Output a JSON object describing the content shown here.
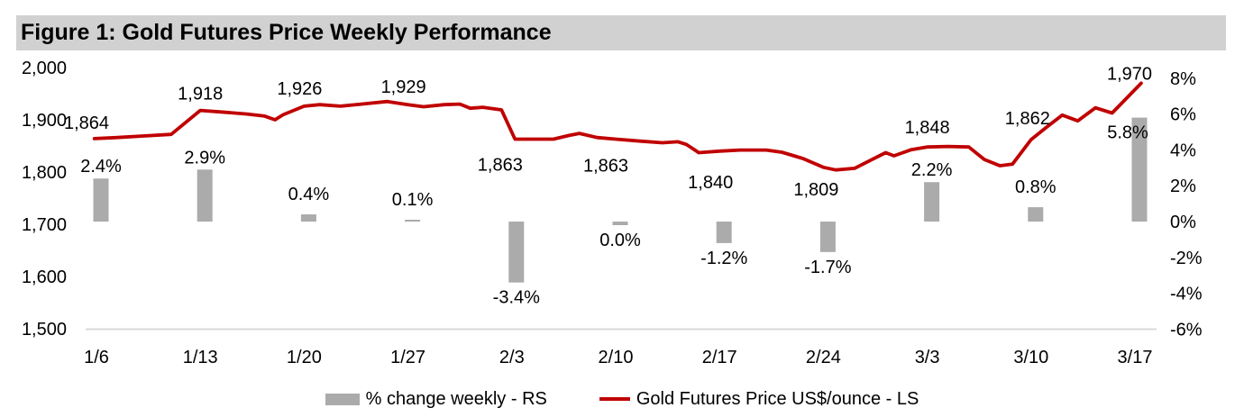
{
  "figure": {
    "title": "Figure 1: Gold Futures Price Weekly Performance"
  },
  "legend": {
    "bar_label": "% change weekly - RS",
    "line_label": "Gold Futures Price US$/ounce - LS"
  },
  "colors": {
    "line_red": "#c00000",
    "bar_gray": "#ababab",
    "title_band_bg": "#d1d1d1",
    "gridline_gray": "#d9d9d9",
    "text_black": "#000000"
  },
  "chart_data": {
    "type": "combo_bar_line",
    "title": "Figure 1: Gold Futures Price Weekly Performance",
    "categories": [
      "1/6",
      "1/13",
      "1/20",
      "1/27",
      "2/3",
      "2/10",
      "2/17",
      "2/24",
      "3/3",
      "3/10",
      "3/17"
    ],
    "series": [
      {
        "name": "% change weekly - RS",
        "type": "bar",
        "axis": "right",
        "unit": "%",
        "values": [
          2.4,
          2.9,
          0.4,
          0.1,
          -3.4,
          0.0,
          -1.2,
          -1.7,
          2.2,
          0.8,
          5.8
        ],
        "labels": [
          "2.4%",
          "2.9%",
          "0.4%",
          "0.1%",
          "-3.4%",
          "0.0%",
          "-1.2%",
          "-1.7%",
          "2.2%",
          "0.8%",
          "5.8%"
        ]
      },
      {
        "name": "Gold Futures Price US$/ounce - LS",
        "type": "line",
        "axis": "left",
        "unit": "US$/ounce",
        "values": [
          1864,
          1918,
          1926,
          1929,
          1863,
          1863,
          1840,
          1809,
          1848,
          1862,
          1970
        ],
        "labels": [
          "1,864",
          "1,918",
          "1,926",
          "1,929",
          "1,863",
          "1,863",
          "1,840",
          "1,809",
          "1,848",
          "1,862",
          "1,970"
        ]
      }
    ],
    "left_axis": {
      "ticks": [
        "2,000",
        "1,900",
        "1,800",
        "1,700",
        "1,600",
        "1,500"
      ],
      "tick_values": [
        2000,
        1900,
        1800,
        1700,
        1600,
        1500
      ],
      "range": [
        1500,
        2000
      ]
    },
    "right_axis": {
      "ticks": [
        "8%",
        "6%",
        "4%",
        "2%",
        "0%",
        "-2%",
        "-4%",
        "-6%"
      ],
      "tick_values": [
        8,
        6,
        4,
        2,
        0,
        -2,
        -4,
        -6
      ],
      "range": [
        -6,
        8
      ]
    },
    "grid": "bottom-baseline-only",
    "legend_position": "bottom-center",
    "line_path_weekly_detail": [
      [
        -0.02,
        1864
      ],
      [
        0.2,
        1866
      ],
      [
        0.45,
        1869
      ],
      [
        0.72,
        1872
      ],
      [
        1.0,
        1918
      ],
      [
        1.2,
        1915
      ],
      [
        1.45,
        1911
      ],
      [
        1.62,
        1907
      ],
      [
        1.72,
        1900
      ],
      [
        1.8,
        1910
      ],
      [
        2.0,
        1926
      ],
      [
        2.15,
        1929
      ],
      [
        2.35,
        1926
      ],
      [
        2.55,
        1930
      ],
      [
        2.8,
        1935
      ],
      [
        3.0,
        1929
      ],
      [
        3.15,
        1925
      ],
      [
        3.35,
        1929
      ],
      [
        3.5,
        1930
      ],
      [
        3.6,
        1922
      ],
      [
        3.72,
        1924
      ],
      [
        3.9,
        1919
      ],
      [
        4.03,
        1863
      ],
      [
        4.4,
        1863
      ],
      [
        4.55,
        1870
      ],
      [
        4.65,
        1874
      ],
      [
        4.82,
        1866
      ],
      [
        5.0,
        1863
      ],
      [
        5.25,
        1859
      ],
      [
        5.45,
        1856
      ],
      [
        5.6,
        1858
      ],
      [
        5.68,
        1853
      ],
      [
        5.8,
        1837
      ],
      [
        6.0,
        1840
      ],
      [
        6.2,
        1842
      ],
      [
        6.45,
        1842
      ],
      [
        6.6,
        1838
      ],
      [
        6.8,
        1826
      ],
      [
        7.0,
        1809
      ],
      [
        7.12,
        1804
      ],
      [
        7.3,
        1807
      ],
      [
        7.45,
        1822
      ],
      [
        7.6,
        1837
      ],
      [
        7.68,
        1831
      ],
      [
        7.85,
        1843
      ],
      [
        8.0,
        1848
      ],
      [
        8.2,
        1849
      ],
      [
        8.4,
        1848
      ],
      [
        8.55,
        1824
      ],
      [
        8.7,
        1812
      ],
      [
        8.82,
        1815
      ],
      [
        9.0,
        1862
      ],
      [
        9.15,
        1886
      ],
      [
        9.3,
        1909
      ],
      [
        9.45,
        1898
      ],
      [
        9.62,
        1923
      ],
      [
        9.78,
        1913
      ],
      [
        10.06,
        1970
      ]
    ]
  }
}
